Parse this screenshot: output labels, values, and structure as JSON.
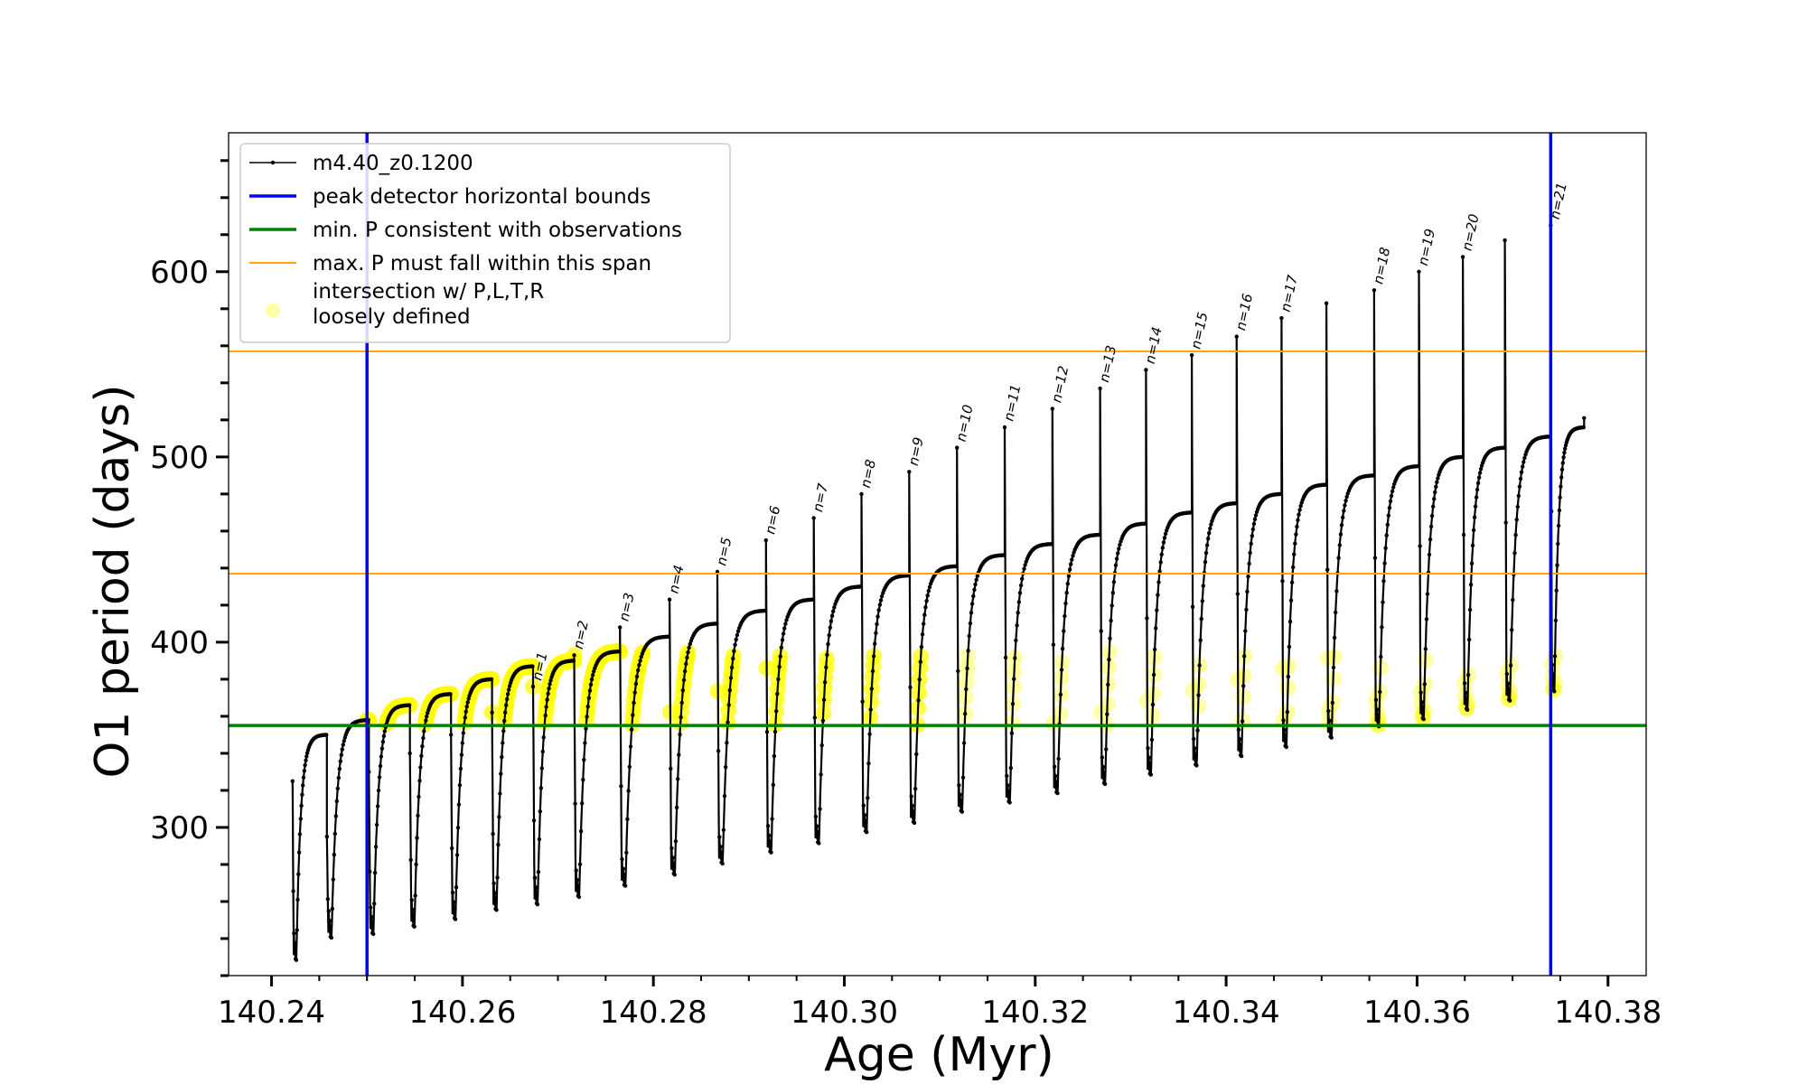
{
  "chart_data": {
    "type": "line",
    "xlabel": "Age (Myr)",
    "ylabel": "O1 period (days)",
    "xlim": [
      140.2355,
      140.384
    ],
    "ylim": [
      220,
      675
    ],
    "x_ticks": [
      140.24,
      140.26,
      140.28,
      140.3,
      140.32,
      140.34,
      140.36,
      140.38
    ],
    "x_tick_labels": [
      "140.24",
      "140.26",
      "140.28",
      "140.30",
      "140.32",
      "140.34",
      "140.36",
      "140.38"
    ],
    "y_ticks": [
      300,
      400,
      500,
      600
    ],
    "y_tick_labels": [
      "300",
      "400",
      "500",
      "600"
    ],
    "grid": false,
    "legend_position": "top-left",
    "legend": [
      {
        "label": "m4.40_z0.1200",
        "color": "#000000",
        "style": "line-marker"
      },
      {
        "label": "peak detector horizontal bounds",
        "color": "#0000ff",
        "style": "thick-line"
      },
      {
        "label": "min. P consistent with observations",
        "color": "#008000",
        "style": "thick-line"
      },
      {
        "label": "max. P must fall within this span",
        "color": "#ffa500",
        "style": "thin-line"
      },
      {
        "label": "intersection w/ P,L,T,R\nloosely defined",
        "color": "#ffff00",
        "style": "marker"
      }
    ],
    "vertical_lines": [
      {
        "x": 140.25,
        "color": "#0000ff",
        "meaning": "peak detector horizontal bounds"
      },
      {
        "x": 140.374,
        "color": "#0000ff",
        "meaning": "peak detector horizontal bounds"
      }
    ],
    "horizontal_lines": [
      {
        "y": 355,
        "color": "#008000",
        "meaning": "min. P consistent with observations"
      },
      {
        "y": 437,
        "color": "#ffa500",
        "meaning": "max. P must fall within this span"
      },
      {
        "y": 557,
        "color": "#ffa500",
        "meaning": "max. P must fall within this span"
      }
    ],
    "series_name": "m4.40_z0.1200",
    "cycles": [
      {
        "t0": 140.2422,
        "start": 325,
        "min": 228,
        "max": 350,
        "t_end": 140.2458,
        "label": ""
      },
      {
        "t0": 140.2458,
        "start": 295,
        "min": 240,
        "max": 358,
        "t_end": 140.2502,
        "label": ""
      },
      {
        "t0": 140.2502,
        "start": 330,
        "min": 242,
        "max": 366,
        "t_end": 140.2545,
        "label": ""
      },
      {
        "t0": 140.2545,
        "start": 340,
        "min": 246,
        "max": 372,
        "t_end": 140.2588,
        "label": ""
      },
      {
        "t0": 140.2588,
        "start": 350,
        "min": 250,
        "max": 380,
        "t_end": 140.2631,
        "label": ""
      },
      {
        "t0": 140.2631,
        "start": 362,
        "min": 255,
        "max": 387,
        "t_end": 140.2674,
        "label": ""
      },
      {
        "t0": 140.2674,
        "start": 376,
        "min": 258,
        "max": 390,
        "t_end": 140.2717,
        "label": "n=1"
      },
      {
        "t0": 140.2717,
        "start": 393,
        "min": 262,
        "max": 395,
        "t_end": 140.2765,
        "label": "n=2"
      },
      {
        "t0": 140.2765,
        "start": 408,
        "min": 268,
        "max": 403,
        "t_end": 140.2817,
        "label": "n=3"
      },
      {
        "t0": 140.2817,
        "start": 423,
        "min": 274,
        "max": 410,
        "t_end": 140.2867,
        "label": "n=4"
      },
      {
        "t0": 140.2867,
        "start": 438,
        "min": 280,
        "max": 417,
        "t_end": 140.2918,
        "label": "n=5"
      },
      {
        "t0": 140.2918,
        "start": 455,
        "min": 286,
        "max": 423,
        "t_end": 140.2968,
        "label": "n=6"
      },
      {
        "t0": 140.2968,
        "start": 467,
        "min": 291,
        "max": 430,
        "t_end": 140.3018,
        "label": "n=7"
      },
      {
        "t0": 140.3018,
        "start": 480,
        "min": 297,
        "max": 436,
        "t_end": 140.3068,
        "label": "n=8"
      },
      {
        "t0": 140.3068,
        "start": 492,
        "min": 302,
        "max": 441,
        "t_end": 140.3118,
        "label": "n=9"
      },
      {
        "t0": 140.3118,
        "start": 505,
        "min": 308,
        "max": 447,
        "t_end": 140.3168,
        "label": "n=10"
      },
      {
        "t0": 140.3168,
        "start": 516,
        "min": 313,
        "max": 453,
        "t_end": 140.3218,
        "label": "n=11"
      },
      {
        "t0": 140.3218,
        "start": 526,
        "min": 318,
        "max": 458,
        "t_end": 140.3268,
        "label": "n=12"
      },
      {
        "t0": 140.3268,
        "start": 537,
        "min": 323,
        "max": 464,
        "t_end": 140.3316,
        "label": "n=13"
      },
      {
        "t0": 140.3316,
        "start": 547,
        "min": 328,
        "max": 470,
        "t_end": 140.3364,
        "label": "n=14"
      },
      {
        "t0": 140.3364,
        "start": 555,
        "min": 333,
        "max": 475,
        "t_end": 140.3411,
        "label": "n=15"
      },
      {
        "t0": 140.3411,
        "start": 565,
        "min": 338,
        "max": 480,
        "t_end": 140.3458,
        "label": "n=16"
      },
      {
        "t0": 140.3458,
        "start": 575,
        "min": 343,
        "max": 485,
        "t_end": 140.3505,
        "label": "n=17"
      },
      {
        "t0": 140.3505,
        "start": 583,
        "min": 348,
        "max": 490,
        "t_end": 140.3555,
        "label": ""
      },
      {
        "t0": 140.3555,
        "start": 590,
        "min": 354,
        "max": 495,
        "t_end": 140.3602,
        "label": "n=18"
      },
      {
        "t0": 140.3602,
        "start": 600,
        "min": 358,
        "max": 500,
        "t_end": 140.3648,
        "label": "n=19"
      },
      {
        "t0": 140.3648,
        "start": 608,
        "min": 363,
        "max": 505,
        "t_end": 140.3692,
        "label": "n=20"
      },
      {
        "t0": 140.3692,
        "start": 617,
        "min": 368,
        "max": 511,
        "t_end": 140.374,
        "label": ""
      },
      {
        "t0": 140.374,
        "start": 625,
        "min": 373,
        "max": 516,
        "t_end": 140.3775,
        "label": "n=21"
      }
    ],
    "final_value": {
      "x": 140.3775,
      "y": 521
    }
  }
}
